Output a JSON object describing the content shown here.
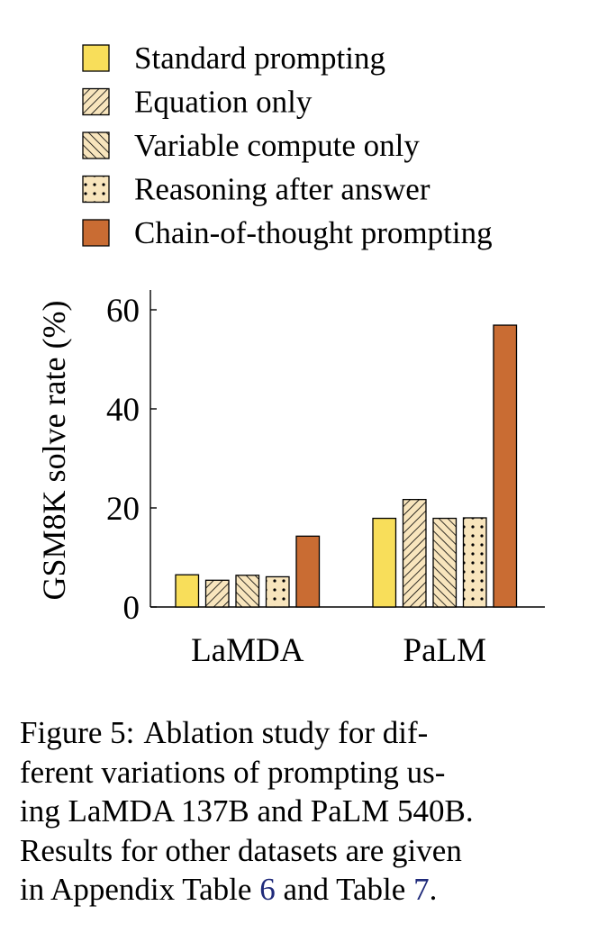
{
  "chart_data": {
    "type": "bar",
    "ylabel": "GSM8K solve rate (%)",
    "xlabel": "",
    "ylim": [
      0,
      64
    ],
    "yticks": [
      0,
      20,
      40,
      60
    ],
    "grid": false,
    "legend_position": "top",
    "categories": [
      "LaMDA",
      "PaLM"
    ],
    "series": [
      {
        "name": "Standard prompting",
        "pattern": "solid",
        "color": "#f8de5a",
        "values": [
          6.5,
          17.9
        ]
      },
      {
        "name": "Equation only",
        "pattern": "diagonal-backslash",
        "color": "#f8e5bd",
        "values": [
          5.4,
          21.7
        ]
      },
      {
        "name": "Variable compute only",
        "pattern": "diagonal-slash",
        "color": "#f8e5bd",
        "values": [
          6.4,
          17.9
        ]
      },
      {
        "name": "Reasoning after answer",
        "pattern": "dots",
        "color": "#f8e5bd",
        "values": [
          6.1,
          18.0
        ]
      },
      {
        "name": "Chain-of-thought prompting",
        "pattern": "solid",
        "color": "#c96c33",
        "values": [
          14.3,
          56.9
        ]
      }
    ]
  },
  "caption": {
    "label": "Figure 5:",
    "lines": [
      "Ablation study for dif-",
      "ferent variations of prompting us-",
      "ing LaMDA 137B and PaLM 540B.",
      "Results for other datasets are given",
      "in Appendix Table"
    ],
    "ref1": "6",
    "between": "and Table",
    "ref2": "7",
    "end": "."
  }
}
